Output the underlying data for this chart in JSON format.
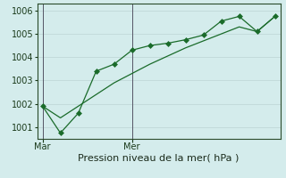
{
  "line1_x": [
    0,
    1,
    2,
    3,
    4,
    5,
    6,
    7,
    8,
    9,
    10,
    11,
    12,
    13
  ],
  "line1_y": [
    1001.9,
    1000.75,
    1001.6,
    1003.4,
    1003.7,
    1004.3,
    1004.5,
    1004.6,
    1004.75,
    1004.95,
    1005.55,
    1005.75,
    1005.1,
    1005.75
  ],
  "line2_x": [
    0,
    1,
    2,
    3,
    4,
    5,
    6,
    7,
    8,
    9,
    10,
    11,
    12,
    13
  ],
  "line2_y": [
    1001.9,
    1001.4,
    1001.9,
    1002.4,
    1002.9,
    1003.3,
    1003.7,
    1004.05,
    1004.4,
    1004.7,
    1005.0,
    1005.3,
    1005.1,
    1005.75
  ],
  "line_color": "#1a6b2a",
  "marker": "D",
  "marker_size": 3,
  "bg_color": "#d4ecec",
  "grid_color": "#c0d8d8",
  "ylim": [
    1000.5,
    1006.3
  ],
  "yticks": [
    1001,
    1002,
    1003,
    1004,
    1005,
    1006
  ],
  "xlabel": "Pression niveau de la mer( hPa )",
  "xlabel_fontsize": 8,
  "tick_fontsize": 7,
  "day_labels": [
    "Mar",
    "Mer"
  ],
  "day_positions": [
    0,
    5
  ],
  "vline_x": [
    0,
    5
  ],
  "vline_color": "#555566",
  "xlim": [
    -0.3,
    13.3
  ],
  "figsize": [
    3.2,
    2.0
  ],
  "dpi": 100
}
